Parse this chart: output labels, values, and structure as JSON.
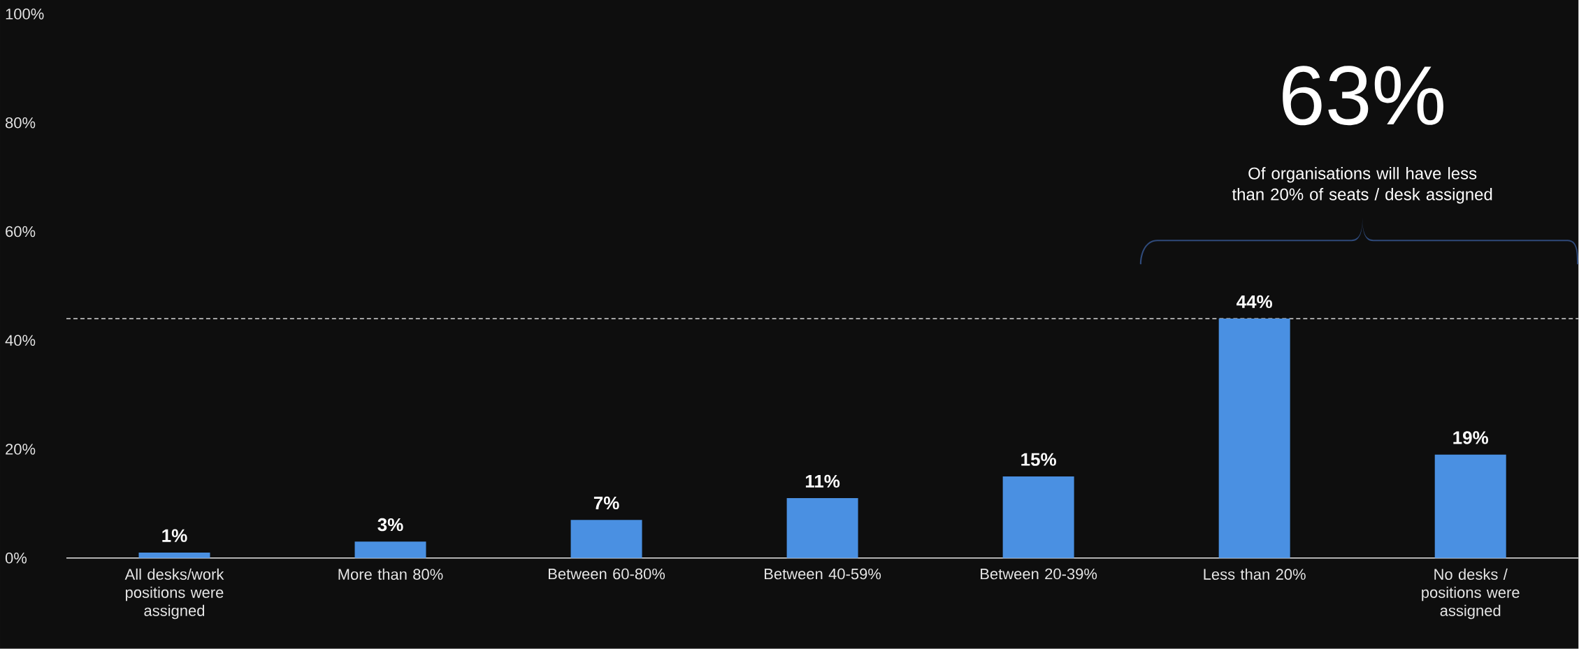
{
  "chart_data": {
    "type": "bar",
    "categories": [
      "All desks/work positions were assigned",
      "More than 80%",
      "Between 60-80%",
      "Between 40-59%",
      "Between 20-39%",
      "Less than 20%",
      "No desks / positions were assigned"
    ],
    "values": [
      1,
      3,
      7,
      11,
      15,
      44,
      19
    ],
    "value_labels": [
      "1%",
      "3%",
      "7%",
      "11%",
      "15%",
      "44%",
      "19%"
    ],
    "color": "#4a90e2",
    "ylim": [
      0,
      100
    ],
    "yticks": [
      {
        "value": 0,
        "label": "0%"
      },
      {
        "value": 20,
        "label": "20%"
      },
      {
        "value": 40,
        "label": "40%"
      },
      {
        "value": 60,
        "label": "60%"
      },
      {
        "value": 80,
        "label": "80%"
      },
      {
        "value": 100,
        "label": "100%"
      }
    ],
    "ref_lines": [
      {
        "axis": "y",
        "value": 44,
        "color": "#ffffff",
        "line_style": "dashed"
      }
    ],
    "annotations": [
      "63%",
      "Of organisations will have less than 20% of seats / desk assigned"
    ]
  }
}
